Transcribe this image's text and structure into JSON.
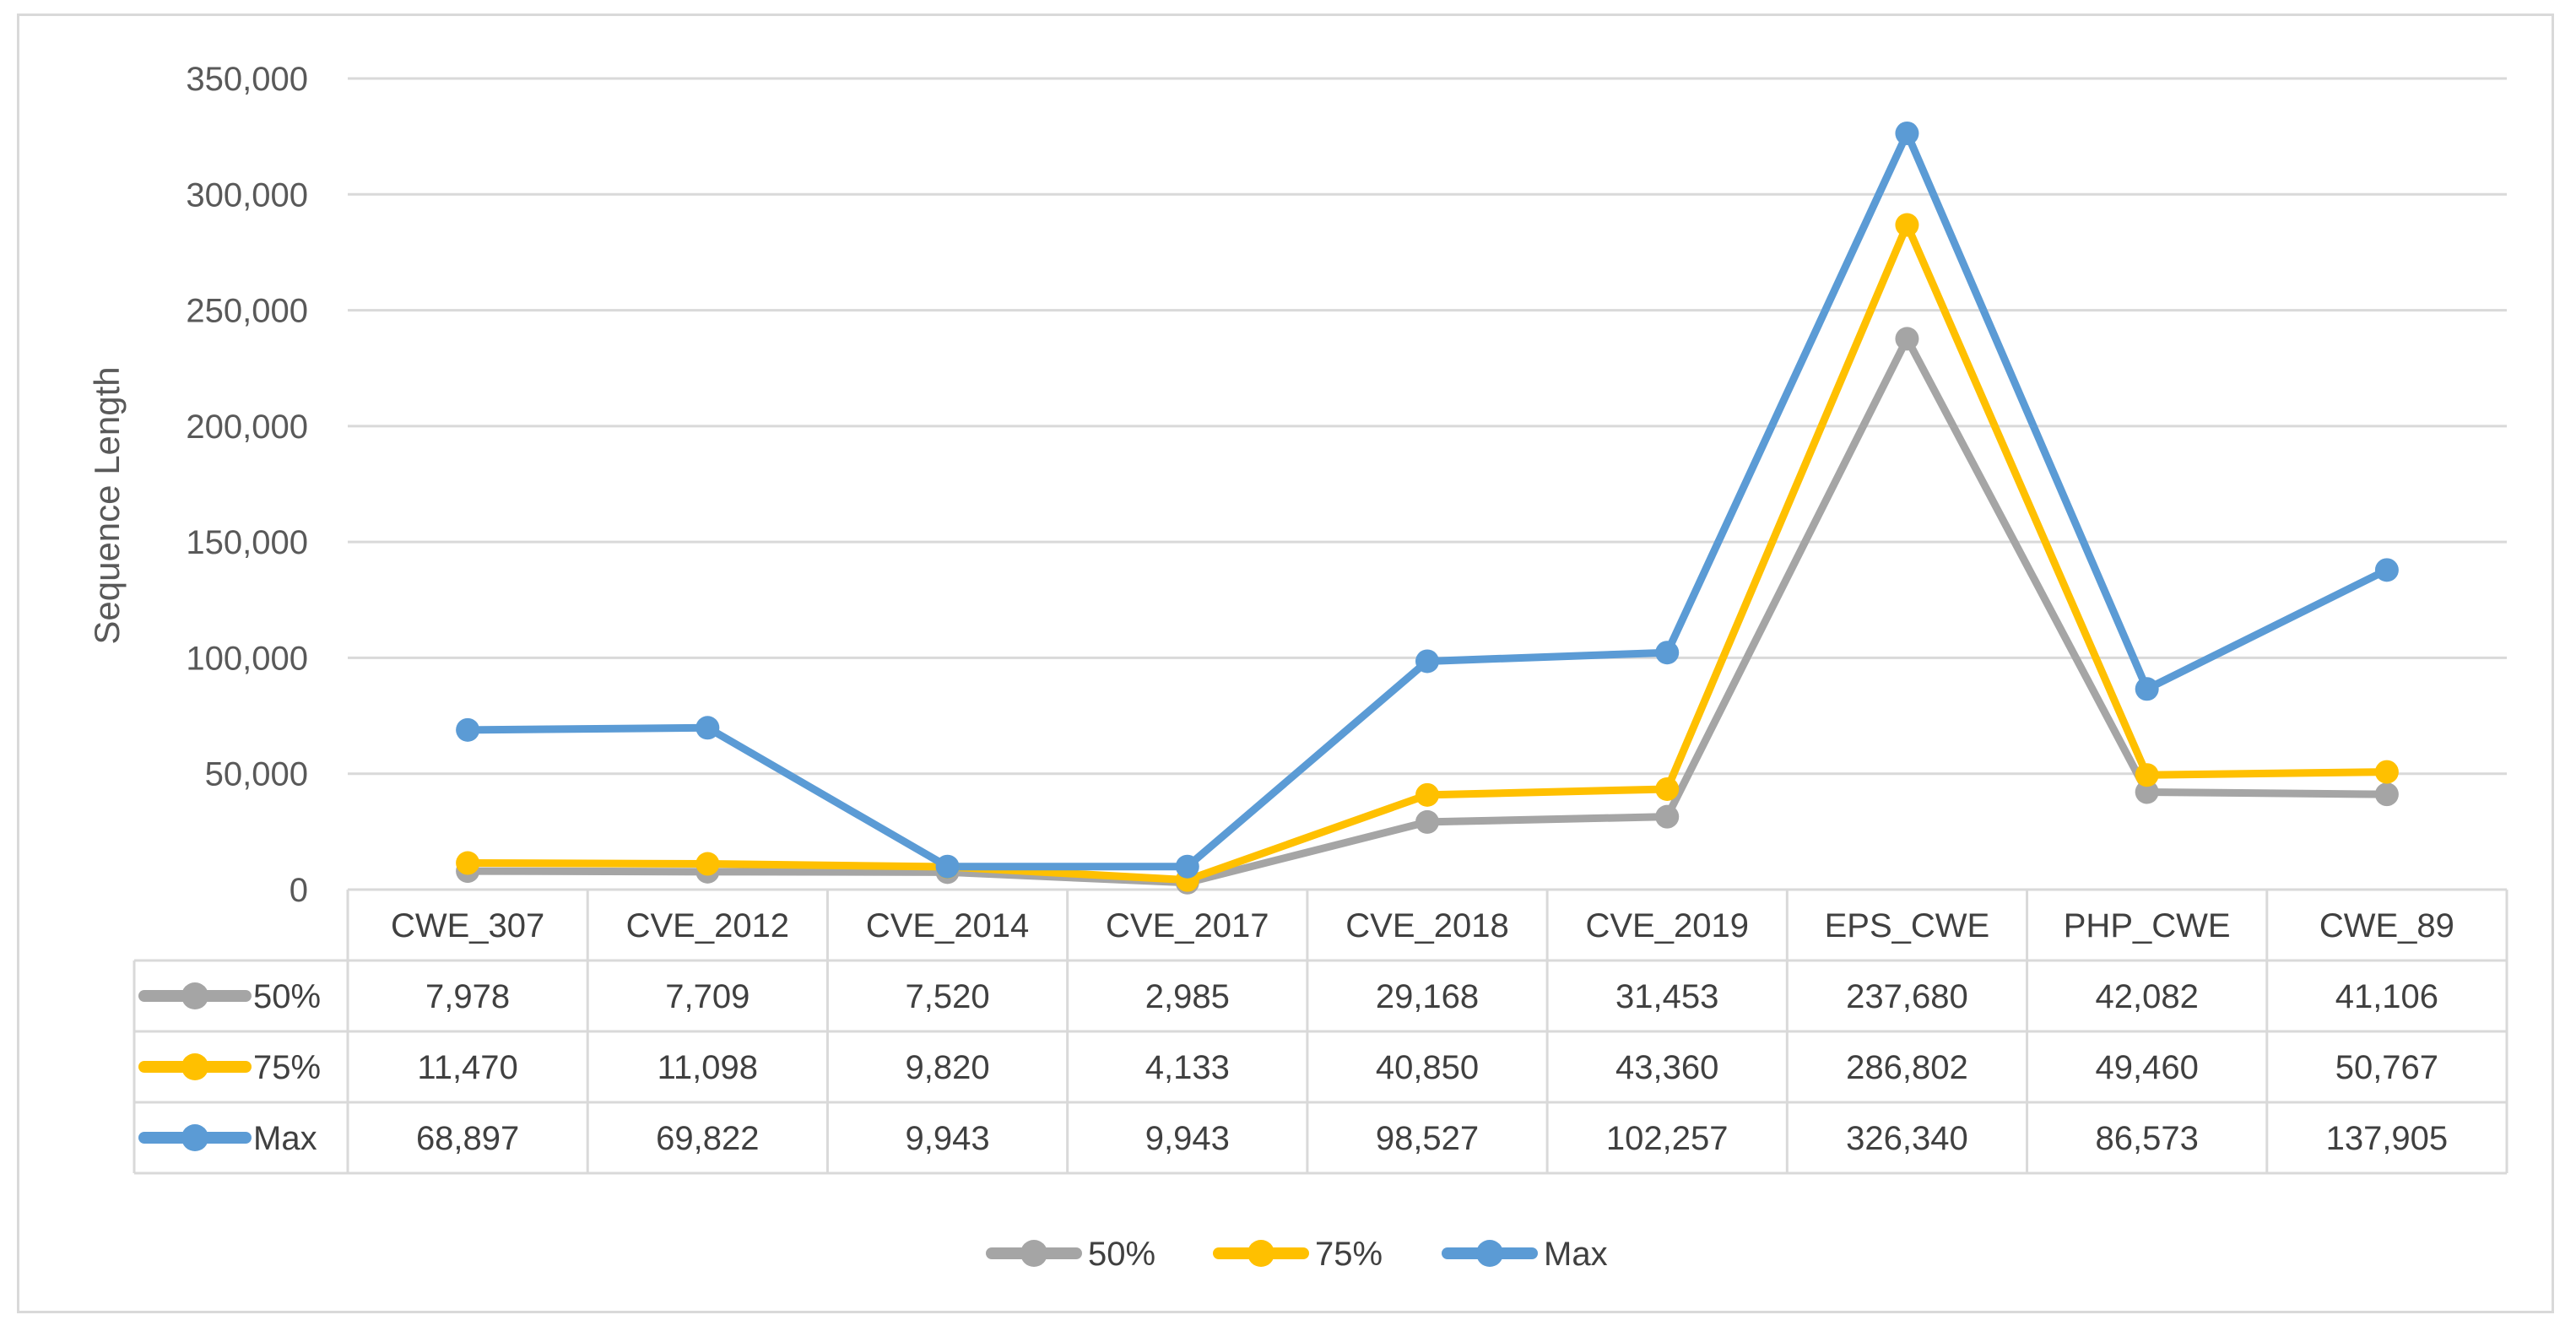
{
  "chart_data": {
    "type": "line",
    "title": "",
    "xlabel": "",
    "ylabel": "Sequence Length",
    "ylim": [
      0,
      350000
    ],
    "yticks": [
      0,
      50000,
      100000,
      150000,
      200000,
      250000,
      300000,
      350000
    ],
    "ytick_labels": [
      "0",
      "50,000",
      "100,000",
      "150,000",
      "200,000",
      "250,000",
      "300,000",
      "350,000"
    ],
    "grid": true,
    "legend_position": "bottom",
    "categories": [
      "CWE_307",
      "CVE_2012",
      "CVE_2014",
      "CVE_2017",
      "CVE_2018",
      "CVE_2019",
      "EPS_CWE",
      "PHP_CWE",
      "CWE_89"
    ],
    "series": [
      {
        "name": "50%",
        "color": "#a5a5a5",
        "values": [
          7978,
          7709,
          7520,
          2985,
          29168,
          31453,
          237680,
          42082,
          41106
        ],
        "labels": [
          "7,978",
          "7,709",
          "7,520",
          "2,985",
          "29,168",
          "31,453",
          "237,680",
          "42,082",
          "41,106"
        ]
      },
      {
        "name": "75%",
        "color": "#ffc000",
        "values": [
          11470,
          11098,
          9820,
          4133,
          40850,
          43360,
          286802,
          49460,
          50767
        ],
        "labels": [
          "11,470",
          "11,098",
          "9,820",
          "4,133",
          "40,850",
          "43,360",
          "286,802",
          "49,460",
          "50,767"
        ]
      },
      {
        "name": "Max",
        "color": "#5b9bd5",
        "values": [
          68897,
          69822,
          9943,
          9943,
          98527,
          102257,
          326340,
          86573,
          137905
        ],
        "labels": [
          "68,897",
          "69,822",
          "9,943",
          "9,943",
          "98,527",
          "102,257",
          "326,340",
          "86,573",
          "137,905"
        ]
      }
    ]
  }
}
